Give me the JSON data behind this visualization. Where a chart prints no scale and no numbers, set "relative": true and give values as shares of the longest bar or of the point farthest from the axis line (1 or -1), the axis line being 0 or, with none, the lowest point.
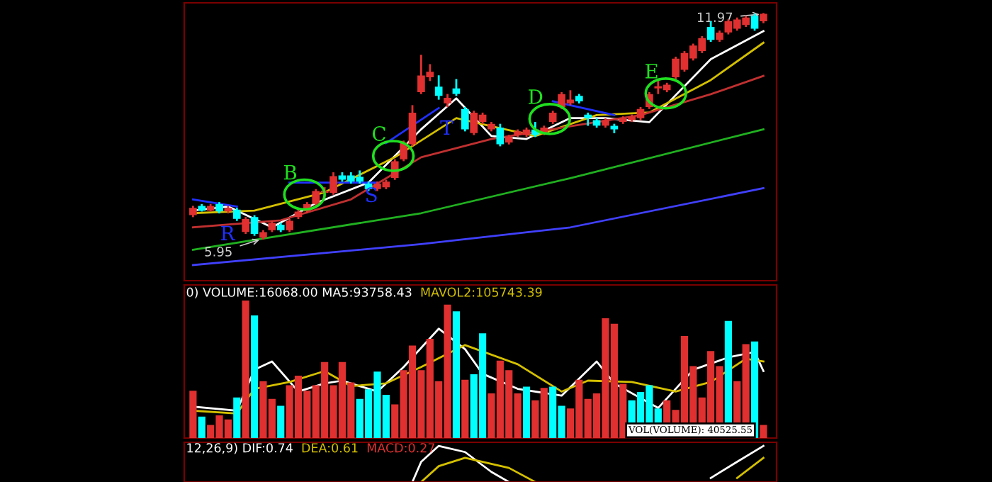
{
  "chart_data": [
    {
      "type": "candlestick",
      "categories": [
        null,
        null,
        null,
        null,
        null,
        null,
        null,
        null,
        null,
        null,
        null,
        null,
        null,
        null,
        null,
        null,
        null,
        null,
        null,
        null,
        null,
        null,
        null,
        null,
        null,
        null,
        null,
        null,
        null,
        null,
        null,
        null,
        null,
        null,
        null,
        null,
        null,
        null,
        null,
        null,
        null,
        null,
        null,
        null,
        null,
        null,
        null,
        null,
        null,
        null,
        null,
        null,
        null,
        null,
        null,
        null,
        null,
        null,
        null,
        null,
        null,
        null,
        null,
        null,
        null,
        null
      ],
      "ohlc": [
        [
          6.6,
          6.8,
          6.55,
          6.75
        ],
        [
          6.8,
          6.85,
          6.7,
          6.72
        ],
        [
          6.72,
          6.85,
          6.7,
          6.8
        ],
        [
          6.85,
          6.9,
          6.65,
          6.7
        ],
        [
          6.7,
          6.8,
          6.65,
          6.75
        ],
        [
          6.7,
          6.75,
          6.45,
          6.5
        ],
        [
          6.15,
          6.5,
          6.1,
          6.45
        ],
        [
          6.5,
          6.55,
          6.05,
          6.1
        ],
        [
          6.0,
          6.15,
          5.95,
          6.1
        ],
        [
          6.2,
          6.4,
          6.15,
          6.35
        ],
        [
          6.3,
          6.35,
          6.15,
          6.2
        ],
        [
          6.2,
          6.45,
          6.15,
          6.4
        ],
        [
          6.55,
          6.75,
          6.5,
          6.65
        ],
        [
          6.7,
          6.9,
          6.65,
          6.85
        ],
        [
          6.9,
          7.25,
          6.85,
          7.2
        ],
        [
          7.2,
          7.3,
          7.1,
          7.21
        ],
        [
          7.2,
          7.7,
          7.15,
          7.6
        ],
        [
          7.62,
          7.7,
          7.5,
          7.55
        ],
        [
          7.62,
          7.7,
          7.45,
          7.5
        ],
        [
          7.58,
          7.75,
          7.45,
          7.5
        ],
        [
          7.4,
          7.45,
          7.25,
          7.3
        ],
        [
          7.3,
          7.45,
          7.25,
          7.4
        ],
        [
          7.35,
          7.5,
          7.3,
          7.45
        ],
        [
          7.6,
          8.05,
          7.55,
          8.0
        ],
        [
          8.1,
          8.55,
          8.05,
          8.5
        ],
        [
          8.5,
          9.5,
          8.45,
          9.3
        ],
        [
          9.9,
          10.85,
          9.85,
          10.3
        ],
        [
          10.3,
          10.6,
          10.2,
          10.4
        ],
        [
          10.0,
          10.3,
          9.7,
          9.8
        ],
        [
          9.6,
          9.8,
          9.5,
          9.7
        ],
        [
          9.95,
          10.2,
          9.8,
          9.85
        ],
        [
          9.4,
          9.45,
          8.85,
          8.9
        ],
        [
          8.8,
          9.35,
          8.75,
          9.3
        ],
        [
          9.1,
          9.3,
          9.05,
          9.25
        ],
        [
          8.9,
          9.05,
          8.85,
          9.0
        ],
        [
          8.9,
          9.0,
          8.45,
          8.5
        ],
        [
          8.55,
          8.7,
          8.5,
          8.65
        ],
        [
          8.75,
          8.85,
          8.7,
          8.8
        ],
        [
          8.75,
          8.9,
          8.7,
          8.85
        ],
        [
          8.85,
          9.05,
          8.7,
          8.75
        ],
        [
          8.8,
          8.95,
          8.75,
          8.9
        ],
        [
          9.1,
          9.35,
          9.05,
          9.3
        ],
        [
          9.5,
          9.85,
          9.45,
          9.8
        ],
        [
          9.6,
          9.9,
          9.55,
          9.65
        ],
        [
          9.75,
          9.8,
          9.6,
          9.65
        ],
        [
          9.25,
          9.3,
          9.0,
          9.2
        ],
        [
          9.1,
          9.15,
          8.95,
          9.0
        ],
        [
          9.0,
          9.15,
          8.95,
          9.1
        ],
        [
          8.95,
          9.0,
          8.8,
          8.9
        ],
        [
          9.1,
          9.2,
          9.05,
          9.15
        ],
        [
          9.15,
          9.25,
          9.1,
          9.2
        ],
        [
          9.2,
          9.45,
          9.15,
          9.4
        ],
        [
          9.5,
          9.85,
          9.45,
          9.8
        ],
        [
          10.0,
          10.15,
          9.85,
          10.01
        ],
        [
          9.95,
          10.1,
          9.9,
          10.05
        ],
        [
          10.3,
          10.8,
          10.25,
          10.75
        ],
        [
          10.5,
          10.95,
          10.45,
          10.9
        ],
        [
          10.8,
          11.15,
          10.75,
          11.1
        ],
        [
          11.0,
          11.35,
          10.95,
          11.3
        ],
        [
          11.6,
          11.75,
          11.25,
          11.3
        ],
        [
          11.3,
          11.5,
          11.25,
          11.45
        ],
        [
          11.5,
          11.8,
          11.45,
          11.75
        ],
        [
          11.6,
          11.85,
          11.55,
          11.8
        ],
        [
          11.7,
          11.9,
          11.65,
          11.85
        ],
        [
          11.9,
          11.95,
          11.55,
          11.6
        ],
        [
          11.8,
          11.97,
          11.75,
          11.95
        ]
      ],
      "colors": [
        "#e03030",
        "#00ffff",
        "#e03030",
        "#00ffff",
        "#e03030",
        "#00ffff",
        "#e03030",
        "#00ffff",
        "#e03030",
        "#e03030",
        "#00ffff",
        "#e03030",
        "#e03030",
        "#e03030",
        "#e03030",
        "#e03030",
        "#e03030",
        "#00ffff",
        "#00ffff",
        "#00ffff",
        "#00ffff",
        "#e03030",
        "#e03030",
        "#e03030",
        "#e03030",
        "#e03030",
        "#e03030",
        "#e03030",
        "#00ffff",
        "#e03030",
        "#00ffff",
        "#00ffff",
        "#e03030",
        "#e03030",
        "#e03030",
        "#00ffff",
        "#e03030",
        "#e03030",
        "#e03030",
        "#00ffff",
        "#e03030",
        "#e03030",
        "#e03030",
        "#e03030",
        "#00ffff",
        "#00ffff",
        "#00ffff",
        "#e03030",
        "#00ffff",
        "#e03030",
        "#e03030",
        "#e03030",
        "#e03030",
        "#e03030",
        "#e03030",
        "#e03030",
        "#e03030",
        "#e03030",
        "#e03030",
        "#00ffff",
        "#e03030",
        "#e03030",
        "#e03030",
        "#e03030",
        "#00ffff",
        "#e03030"
      ],
      "series": [
        {
          "type": "line",
          "color": "#ffffff",
          "values": [
            6.7,
            null,
            null,
            null,
            6.81,
            null,
            null,
            null,
            null,
            6.25,
            null,
            null,
            null,
            null,
            6.9,
            null,
            null,
            null,
            null,
            null,
            7.45,
            null,
            null,
            null,
            null,
            null,
            8.88,
            null,
            null,
            null,
            9.71,
            null,
            null,
            null,
            8.7,
            null,
            null,
            null,
            8.62,
            null,
            null,
            null,
            null,
            9.18,
            null,
            null,
            null,
            9.18,
            null,
            null,
            null,
            null,
            9.07,
            null,
            null,
            null,
            null,
            null,
            null,
            10.76,
            null,
            null,
            null,
            null,
            null,
            11.51
          ]
        },
        {
          "type": "line",
          "color": "#d4c000",
          "values": [
            6.63,
            null,
            null,
            null,
            null,
            null,
            null,
            6.7,
            null,
            null,
            null,
            null,
            null,
            null,
            null,
            7.19,
            null,
            null,
            null,
            null,
            null,
            null,
            null,
            8.13,
            null,
            null,
            null,
            null,
            null,
            null,
            9.18,
            null,
            null,
            null,
            8.96,
            null,
            null,
            null,
            null,
            8.7,
            null,
            null,
            null,
            null,
            null,
            null,
            9.26,
            null,
            null,
            null,
            null,
            null,
            9.33,
            null,
            null,
            null,
            null,
            null,
            null,
            10.2,
            null,
            null,
            null,
            null,
            null,
            11.2
          ]
        },
        {
          "type": "line",
          "color": "#c03030",
          "values": [
            6.25,
            null,
            null,
            null,
            null,
            null,
            null,
            null,
            null,
            null,
            6.44,
            null,
            null,
            null,
            null,
            null,
            null,
            null,
            7.0,
            null,
            null,
            null,
            null,
            null,
            null,
            null,
            8.13,
            null,
            null,
            null,
            null,
            null,
            null,
            null,
            8.62,
            null,
            null,
            null,
            null,
            null,
            null,
            null,
            null,
            8.96,
            null,
            null,
            null,
            null,
            null,
            null,
            null,
            9.26,
            null,
            null,
            null,
            null,
            null,
            null,
            null,
            9.82,
            null,
            null,
            null,
            null,
            null,
            10.31
          ]
        },
        {
          "type": "line",
          "color": "#20b020",
          "values": [
            5.65,
            null,
            null,
            null,
            null,
            null,
            null,
            null,
            null,
            null,
            null,
            null,
            null,
            null,
            null,
            null,
            null,
            null,
            null,
            null,
            null,
            null,
            null,
            null,
            null,
            null,
            6.63,
            null,
            null,
            null,
            null,
            null,
            null,
            null,
            null,
            null,
            null,
            null,
            null,
            null,
            null,
            null,
            null,
            7.57,
            null,
            null,
            null,
            null,
            null,
            null,
            null,
            null,
            null,
            null,
            null,
            null,
            null,
            null,
            null,
            null,
            null,
            null,
            null,
            null,
            null,
            8.88
          ]
        },
        {
          "type": "line",
          "color": "#4040ff",
          "values": [
            5.24,
            null,
            null,
            null,
            null,
            null,
            null,
            null,
            null,
            null,
            null,
            null,
            null,
            null,
            null,
            null,
            null,
            null,
            null,
            null,
            null,
            null,
            null,
            null,
            null,
            null,
            5.8,
            null,
            null,
            null,
            null,
            null,
            null,
            null,
            null,
            null,
            null,
            null,
            null,
            null,
            null,
            null,
            null,
            6.25,
            null,
            null,
            null,
            null,
            null,
            null,
            null,
            null,
            null,
            null,
            null,
            null,
            null,
            null,
            null,
            null,
            null,
            null,
            null,
            null,
            null,
            7.3
          ]
        },
        {
          "type": "line",
          "color": "#2030ff",
          "values": [
            7.0,
            null,
            null,
            null,
            null,
            6.81,
            null,
            null,
            null,
            null,
            null,
            null,
            null,
            null,
            null,
            null,
            null,
            null,
            null,
            null,
            null,
            null,
            null,
            null,
            null,
            null,
            null,
            null,
            null,
            null,
            null,
            null,
            null,
            null,
            null,
            null,
            null,
            null,
            null,
            null,
            null,
            null,
            null,
            null,
            null,
            null,
            null,
            null,
            null,
            null,
            null,
            null,
            null,
            null,
            null,
            null,
            null,
            null,
            null,
            null,
            null,
            null,
            null,
            null,
            null,
            null
          ]
        },
        {
          "type": "line",
          "color": "#2030ff",
          "values": [
            null,
            null,
            null,
            null,
            null,
            null,
            null,
            null,
            null,
            null,
            null,
            7.45,
            null,
            null,
            null,
            null,
            null,
            null,
            null,
            null,
            null,
            7.45,
            null,
            null,
            null,
            null,
            null,
            null,
            null,
            null,
            null,
            null,
            null,
            null,
            null,
            null,
            null,
            null,
            null,
            null,
            null,
            null,
            null,
            null,
            null,
            null,
            null,
            null,
            null,
            null,
            null,
            null,
            null,
            null,
            null,
            null,
            null,
            null,
            null,
            null,
            null,
            null,
            null,
            null,
            null,
            null
          ]
        },
        {
          "type": "line",
          "color": "#2030ff",
          "values": [
            null,
            null,
            null,
            null,
            null,
            null,
            null,
            null,
            null,
            null,
            null,
            null,
            null,
            null,
            null,
            null,
            null,
            null,
            null,
            null,
            null,
            null,
            8.51,
            null,
            null,
            null,
            null,
            null,
            9.45,
            null,
            null,
            null,
            null,
            null,
            null,
            null,
            null,
            null,
            null,
            null,
            null,
            null,
            null,
            null,
            null,
            null,
            null,
            null,
            null,
            null,
            null,
            null,
            null,
            null,
            null,
            null,
            null,
            null,
            null,
            null,
            null,
            null,
            null,
            null,
            null,
            null
          ]
        },
        {
          "type": "line",
          "color": "#2030ff",
          "values": [
            null,
            null,
            null,
            null,
            null,
            null,
            null,
            null,
            null,
            null,
            null,
            null,
            null,
            null,
            null,
            null,
            null,
            null,
            null,
            null,
            null,
            null,
            null,
            null,
            null,
            null,
            null,
            null,
            null,
            null,
            null,
            null,
            null,
            null,
            null,
            null,
            null,
            null,
            null,
            null,
            null,
            9.63,
            null,
            null,
            null,
            null,
            null,
            null,
            9.26,
            null,
            null,
            null,
            null,
            null,
            null,
            null,
            null,
            null,
            null,
            null,
            null,
            null,
            null,
            null,
            null,
            null
          ]
        }
      ],
      "annotations": [
        "11.97",
        "5.95",
        "B",
        "C",
        "D",
        "E",
        "R",
        "S",
        "T"
      ],
      "ylim": [
        4.82,
        12.27
      ]
    },
    {
      "type": "bar",
      "categories": [
        null,
        null,
        null,
        null,
        null,
        null,
        null,
        null,
        null,
        null,
        null,
        null,
        null,
        null,
        null,
        null,
        null,
        null,
        null,
        null,
        null,
        null,
        null,
        null,
        null,
        null,
        null,
        null,
        null,
        null,
        null,
        null,
        null,
        null,
        null,
        null,
        null,
        null,
        null,
        null,
        null,
        null,
        null,
        null,
        null,
        null,
        null,
        null,
        null,
        null,
        null,
        null,
        null,
        null,
        null,
        null,
        null,
        null,
        null,
        null,
        null,
        null,
        null,
        null,
        null,
        null
      ],
      "relative": true,
      "values": [
        0.34,
        0.15,
        0.09,
        0.16,
        0.13,
        0.29,
        1,
        0.89,
        0.41,
        0.28,
        0.23,
        0.38,
        0.45,
        0.34,
        0.38,
        0.55,
        0.38,
        0.55,
        0.4,
        0.28,
        0.35,
        0.48,
        0.31,
        0.24,
        0.49,
        0.67,
        0.49,
        0.72,
        0.41,
        0.97,
        0.92,
        0.42,
        0.46,
        0.76,
        0.32,
        0.56,
        0.49,
        0.32,
        0.37,
        0.27,
        0.36,
        0.37,
        0.23,
        0.21,
        0.42,
        0.28,
        0.32,
        0.87,
        0.83,
        0.39,
        0.27,
        0.33,
        0.38,
        0.21,
        0.27,
        0.2,
        0.74,
        0.52,
        0.29,
        0.63,
        0.52,
        0.85,
        0.41,
        0.68,
        0.7,
        0.09
      ],
      "colors": [
        "#e03030",
        "#00ffff",
        "#e03030",
        "#e03030",
        "#e03030",
        "#00ffff",
        "#e03030",
        "#00ffff",
        "#e03030",
        "#e03030",
        "#00ffff",
        "#e03030",
        "#e03030",
        "#e03030",
        "#e03030",
        "#e03030",
        "#e03030",
        "#e03030",
        "#e03030",
        "#00ffff",
        "#00ffff",
        "#00ffff",
        "#00ffff",
        "#e03030",
        "#e03030",
        "#e03030",
        "#e03030",
        "#e03030",
        "#e03030",
        "#e03030",
        "#00ffff",
        "#e03030",
        "#00ffff",
        "#00ffff",
        "#e03030",
        "#e03030",
        "#e03030",
        "#e03030",
        "#00ffff",
        "#e03030",
        "#e03030",
        "#00ffff",
        "#00ffff",
        "#e03030",
        "#e03030",
        "#e03030",
        "#e03030",
        "#e03030",
        "#e03030",
        "#e03030",
        "#00ffff",
        "#00ffff",
        "#00ffff",
        "#00ffff",
        "#e03030",
        "#e03030",
        "#e03030",
        "#e03030",
        "#e03030",
        "#e03030",
        "#e03030",
        "#00ffff",
        "#e03030",
        "#e03030",
        "#00ffff",
        "#e03030"
      ],
      "series": [
        {
          "type": "line",
          "color": "#ffffff",
          "values": [
            0.23,
            null,
            null,
            null,
            null,
            0.2,
            null,
            0.5,
            null,
            0.56,
            null,
            null,
            0.34,
            null,
            null,
            0.4,
            null,
            0.42,
            null,
            null,
            null,
            0.34,
            null,
            null,
            0.52,
            null,
            null,
            null,
            0.8,
            null,
            null,
            0.65,
            null,
            0.47,
            null,
            null,
            null,
            0.36,
            null,
            null,
            null,
            null,
            0.31,
            null,
            null,
            null,
            0.56,
            null,
            0.4,
            null,
            null,
            null,
            null,
            0.22,
            null,
            null,
            null,
            0.5,
            null,
            null,
            null,
            0.59,
            null,
            null,
            0.63,
            0.49
          ]
        },
        {
          "type": "line",
          "color": "#d4c000",
          "values": [
            0.2,
            null,
            null,
            null,
            null,
            0.18,
            null,
            0.36,
            null,
            null,
            null,
            0.41,
            null,
            null,
            null,
            0.49,
            null,
            null,
            0.38,
            null,
            null,
            null,
            0.4,
            null,
            null,
            null,
            0.52,
            null,
            null,
            null,
            null,
            0.68,
            null,
            null,
            null,
            null,
            null,
            0.54,
            null,
            null,
            null,
            null,
            0.34,
            null,
            null,
            0.42,
            null,
            null,
            null,
            null,
            0.41,
            null,
            null,
            null,
            null,
            0.34,
            null,
            null,
            null,
            0.41,
            null,
            null,
            null,
            0.58,
            null,
            0.56
          ]
        }
      ],
      "annotations": [
        "0) VOLUME:16068.00 MA5:93758.43",
        "MAVOL2:105743.39",
        "VOL(VOLUME): 40525.55"
      ]
    },
    {
      "type": "line",
      "relative": true,
      "categories": [
        null,
        null,
        null,
        null,
        null,
        null,
        null,
        null,
        null,
        null,
        null,
        null,
        null,
        null,
        null,
        null,
        null,
        null,
        null,
        null,
        null,
        null,
        null,
        null,
        null,
        null,
        null,
        null,
        null,
        null,
        null,
        null,
        null,
        null,
        null,
        null,
        null,
        null,
        null,
        null,
        null,
        null,
        null,
        null,
        null,
        null,
        null,
        null,
        null,
        null,
        null,
        null,
        null,
        null,
        null,
        null,
        null,
        null,
        null,
        null,
        null,
        null,
        null,
        null,
        null,
        null
      ],
      "series": [
        {
          "color": "#ffffff",
          "values": [
            null,
            null,
            null,
            null,
            null,
            null,
            null,
            null,
            null,
            null,
            null,
            null,
            null,
            null,
            null,
            null,
            null,
            null,
            null,
            null,
            null,
            null,
            null,
            null,
            null,
            0,
            0.56,
            null,
            1,
            null,
            null,
            0.83,
            null,
            null,
            0.28,
            null,
            0,
            null,
            null,
            null,
            null,
            null,
            null,
            null,
            null,
            null,
            null,
            null,
            null,
            null,
            null,
            null,
            null,
            null,
            null,
            null,
            null,
            null,
            null,
            null,
            null,
            null,
            null,
            null,
            null,
            null
          ]
        },
        {
          "color": "#d4c000",
          "values": [
            null,
            null,
            null,
            null,
            null,
            null,
            null,
            null,
            null,
            null,
            null,
            null,
            null,
            null,
            null,
            null,
            null,
            null,
            null,
            null,
            null,
            null,
            null,
            null,
            null,
            null,
            0,
            null,
            0.44,
            null,
            null,
            0.67,
            null,
            null,
            null,
            null,
            0.39,
            null,
            null,
            0,
            null,
            null,
            null,
            null,
            null,
            null,
            null,
            null,
            null,
            null,
            null,
            null,
            null,
            null,
            null,
            null,
            null,
            null,
            null,
            null,
            null,
            null,
            null,
            null,
            null,
            null
          ]
        },
        {
          "color": "#ffffff",
          "values": [
            null,
            null,
            null,
            null,
            null,
            null,
            null,
            null,
            null,
            null,
            null,
            null,
            null,
            null,
            null,
            null,
            null,
            null,
            null,
            null,
            null,
            null,
            null,
            null,
            null,
            null,
            null,
            null,
            null,
            null,
            null,
            null,
            null,
            null,
            null,
            null,
            null,
            null,
            null,
            null,
            null,
            null,
            null,
            null,
            null,
            null,
            null,
            null,
            null,
            null,
            null,
            null,
            null,
            null,
            null,
            null,
            null,
            null,
            null,
            0.11,
            null,
            null,
            0.56,
            null,
            null,
            1
          ]
        },
        {
          "color": "#d4c000",
          "values": [
            null,
            null,
            null,
            null,
            null,
            null,
            null,
            null,
            null,
            null,
            null,
            null,
            null,
            null,
            null,
            null,
            null,
            null,
            null,
            null,
            null,
            null,
            null,
            null,
            null,
            null,
            null,
            null,
            null,
            null,
            null,
            null,
            null,
            null,
            null,
            null,
            null,
            null,
            null,
            null,
            null,
            null,
            null,
            null,
            null,
            null,
            null,
            null,
            null,
            null,
            null,
            null,
            null,
            null,
            null,
            null,
            null,
            null,
            null,
            null,
            null,
            null,
            0.11,
            null,
            null,
            0.67
          ]
        }
      ],
      "annotations": [
        "12,26,9) DIF:0.74",
        "DEA:0.61",
        "MACD:0.27"
      ]
    }
  ]
}
